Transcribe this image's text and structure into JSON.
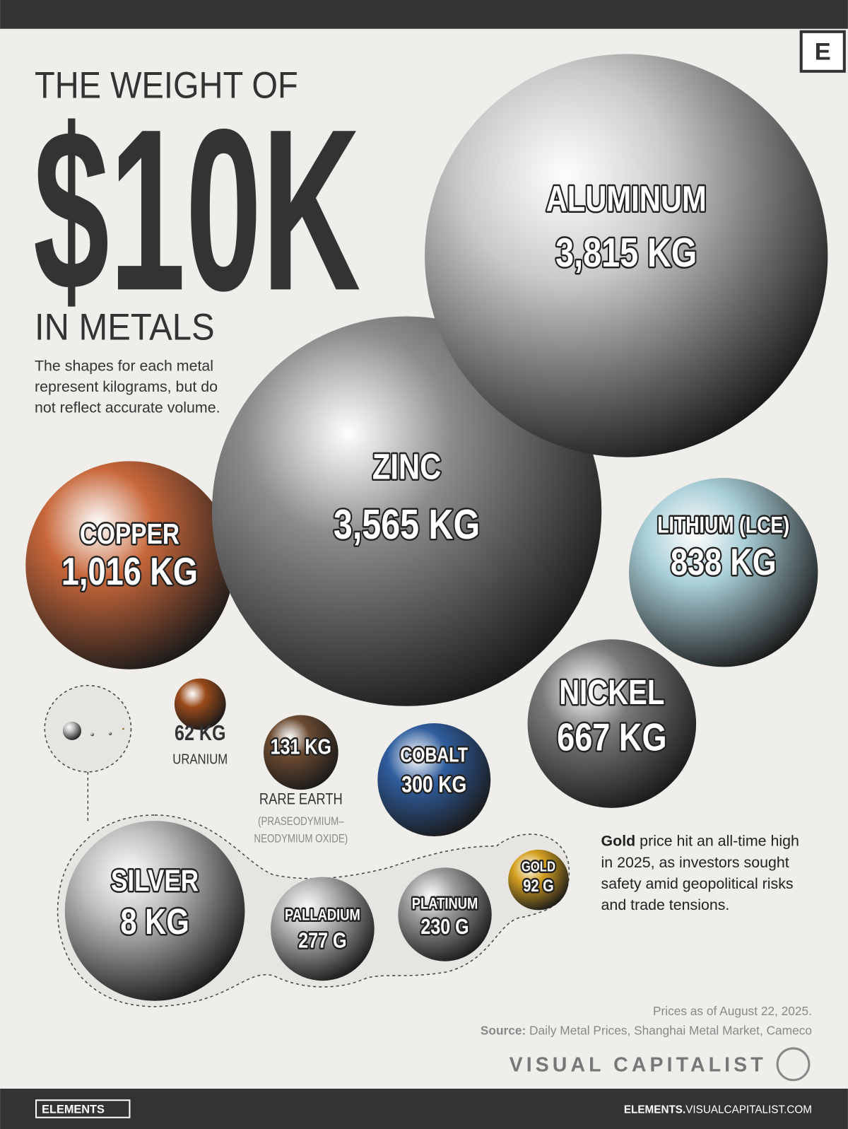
{
  "header": {
    "logo": "E",
    "title_top": "THE WEIGHT OF",
    "title_big": "$10K",
    "title_bottom": "IN METALS",
    "description": [
      "The shapes for each metal",
      "represent kilograms, but do",
      "not reflect accurate volume."
    ]
  },
  "chart_data": {
    "type": "bubble",
    "categories": [
      "ALUMINUM",
      "ZINC",
      "COPPER",
      "LITHIUM (LCE)",
      "NICKEL",
      "COBALT",
      "RARE EARTH",
      "URANIUM",
      "SILVER",
      "PALLADIUM",
      "PLATINUM",
      "GOLD"
    ],
    "subtitle": [
      "(PRASEODYMIUM–",
      "NEODYMIUM OXIDE)"
    ],
    "values": [
      3815,
      3565,
      1016,
      838,
      667,
      300,
      131,
      62,
      8,
      0.277,
      0.23,
      0.092
    ],
    "value_labels": [
      "3,815 KG",
      "3,565 KG",
      "1,016 KG",
      "838 KG",
      "667 KG",
      "300 KG",
      "131 KG",
      "62 KG",
      "8 KG",
      "277 G",
      "230 G",
      "92 G"
    ],
    "colors": [
      "#c9c9c9",
      "#8c8c8c",
      "#c8673a",
      "#a9cfd8",
      "#7a7a7a",
      "#2f5d9e",
      "#6b4a30",
      "#9a4a1a",
      "#bdbdbd",
      "#b3b3b3",
      "#9c9c9c",
      "#d4a020"
    ]
  },
  "note": {
    "bold": "Gold",
    "lines": [
      "price hit an all-time high",
      "in 2025, as investors sought",
      "safety amid geopolitical risks",
      "and trade tensions."
    ]
  },
  "footnote": {
    "prices": "Prices as of August 22, 2025.",
    "source_label": "Source:",
    "source": "Daily Metal Prices, Shanghai Metal Market, Cameco"
  },
  "brand": "VISUAL CAPITALIST",
  "footer": {
    "left": "ELEMENTS",
    "url_bold": "ELEMENTS.",
    "url_rest": "VISUALCAPITALIST.COM"
  }
}
